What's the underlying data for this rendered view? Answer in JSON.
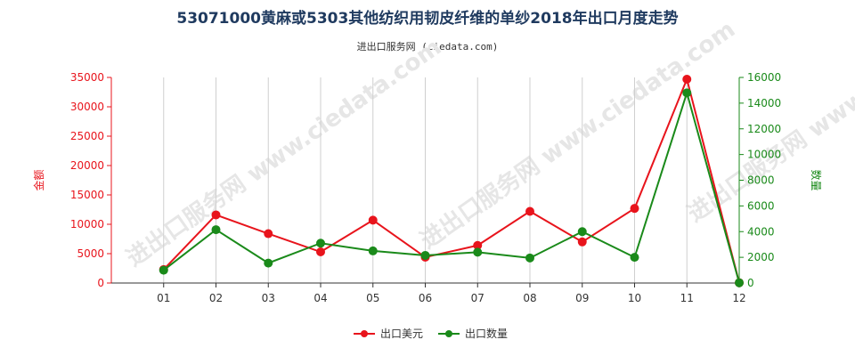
{
  "chart_data": {
    "type": "line",
    "title": "53071000黄麻或5303其他纺织用韧皮纤维的单纱2018年出口月度走势",
    "subtitle": "进出口服务网 (ciedata.com)",
    "categories": [
      "01",
      "02",
      "03",
      "04",
      "05",
      "06",
      "07",
      "08",
      "09",
      "10",
      "11",
      "12"
    ],
    "y_left": {
      "label": "金额",
      "min": 0,
      "max": 35000,
      "ticks": [
        0,
        5000,
        10000,
        15000,
        20000,
        25000,
        30000,
        35000
      ],
      "color": "#e8141c"
    },
    "y_right": {
      "label": "数量",
      "min": 0,
      "max": 16000,
      "ticks": [
        0,
        2000,
        4000,
        6000,
        8000,
        10000,
        12000,
        14000,
        16000
      ],
      "color": "#1a8a1a"
    },
    "series": [
      {
        "name": "出口美元",
        "axis": "left",
        "color": "#e8141c",
        "values": [
          2300,
          11600,
          8400,
          5300,
          10700,
          4400,
          6400,
          12200,
          7000,
          12700,
          34700,
          50
        ]
      },
      {
        "name": "出口数量",
        "axis": "right",
        "color": "#1a8a1a",
        "values": [
          1000,
          4150,
          1550,
          3100,
          2500,
          2150,
          2400,
          1950,
          4000,
          2000,
          14800,
          20
        ]
      }
    ],
    "grid": {
      "vertical": true,
      "horizontal": false
    },
    "legend_position": "bottom-center",
    "watermark": "进出口服务网 www.ciedata.com"
  }
}
